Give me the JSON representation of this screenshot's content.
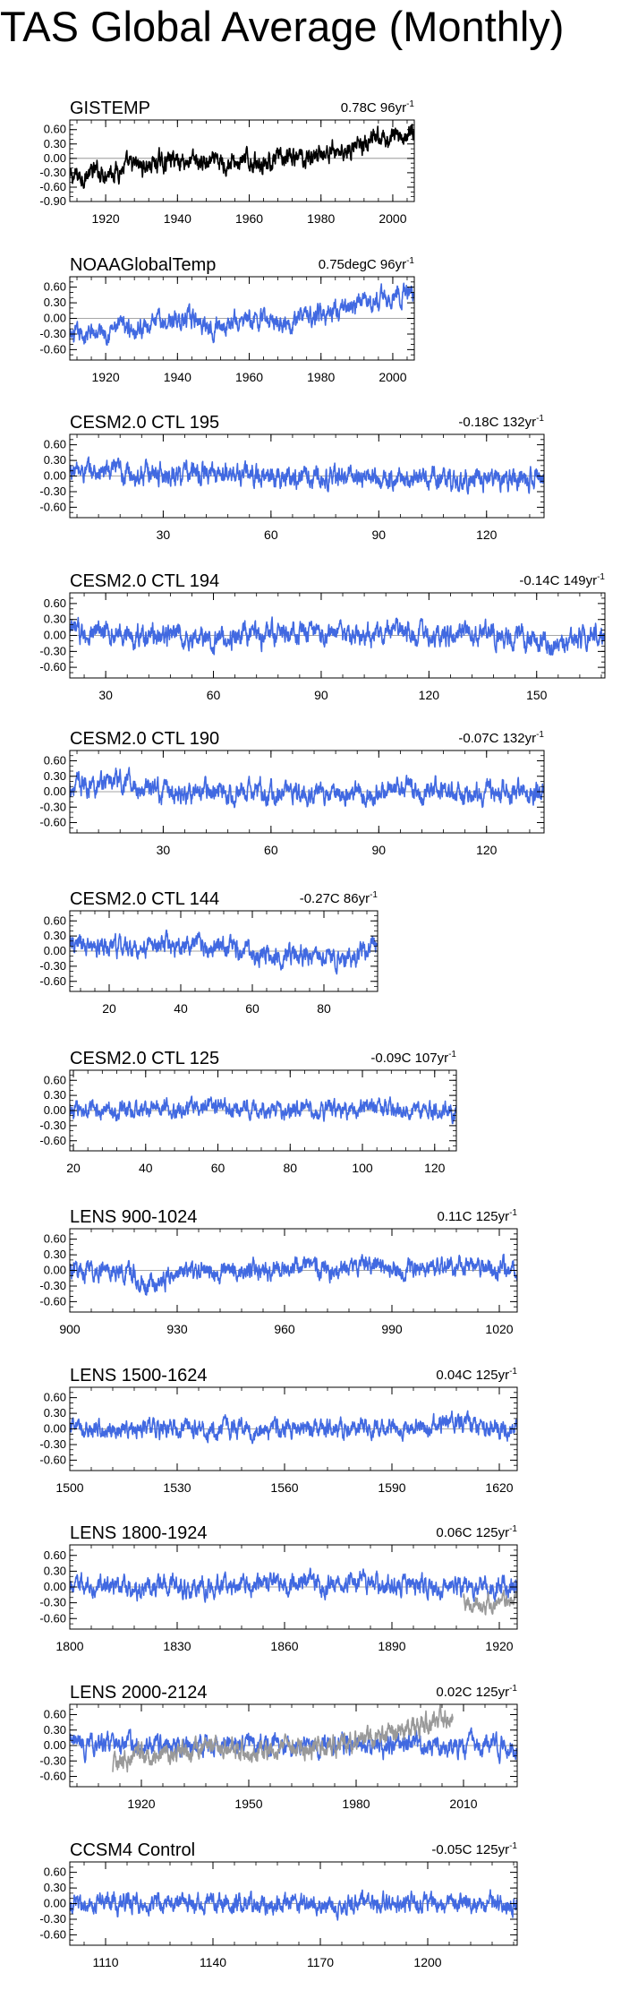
{
  "page": {
    "title": "TAS Global Average (Monthly)"
  },
  "chart_data": [
    {
      "type": "line",
      "title": "GISTEMP",
      "trend_label": "0.78C 96yr",
      "trend_unit_sup": "-1",
      "x_range": [
        1910,
        2006
      ],
      "x_ticks": [
        1920,
        1940,
        1960,
        1980,
        2000
      ],
      "ylim": [
        -0.9,
        0.8
      ],
      "y_ticks": [
        0.6,
        0.3,
        0.0,
        -0.3,
        -0.6,
        -0.9
      ],
      "y_tick_labels": [
        "0.60",
        "0.30",
        "0.00",
        "-0.30",
        "-0.60",
        "-0.90"
      ],
      "zero_line": true,
      "series": [
        {
          "color": "#000000",
          "anchors": [
            [
              1910,
              -0.42
            ],
            [
              1920,
              -0.25
            ],
            [
              1930,
              -0.17
            ],
            [
              1940,
              0.0
            ],
            [
              1950,
              -0.13
            ],
            [
              1960,
              -0.06
            ],
            [
              1970,
              -0.05
            ],
            [
              1980,
              0.1
            ],
            [
              1990,
              0.25
            ],
            [
              2000,
              0.42
            ],
            [
              2006,
              0.56
            ]
          ],
          "noise": 0.13
        }
      ]
    },
    {
      "type": "line",
      "title": "NOAAGlobalTemp",
      "trend_label": "0.75degC 96yr",
      "trend_unit_sup": "-1",
      "x_range": [
        1910,
        2006
      ],
      "x_ticks": [
        1920,
        1940,
        1960,
        1980,
        2000
      ],
      "ylim": [
        -0.8,
        0.8
      ],
      "y_ticks": [
        0.6,
        0.3,
        0.0,
        -0.3,
        -0.6
      ],
      "y_tick_labels": [
        "0.60",
        "0.30",
        "0.00",
        "-0.30",
        "-0.60"
      ],
      "zero_line": true,
      "series": [
        {
          "color": "#4169e1",
          "anchors": [
            [
              1910,
              -0.4
            ],
            [
              1920,
              -0.22
            ],
            [
              1930,
              -0.15
            ],
            [
              1940,
              0.0
            ],
            [
              1950,
              -0.12
            ],
            [
              1960,
              -0.05
            ],
            [
              1970,
              -0.04
            ],
            [
              1980,
              0.1
            ],
            [
              1990,
              0.25
            ],
            [
              2000,
              0.42
            ],
            [
              2006,
              0.55
            ]
          ],
          "noise": 0.12
        }
      ]
    },
    {
      "type": "line",
      "title": "CESM2.0 CTL 195",
      "trend_label": "-0.18C 132yr",
      "trend_unit_sup": "-1",
      "x_range": [
        4,
        136
      ],
      "x_ticks": [
        30,
        60,
        90,
        120
      ],
      "ylim": [
        -0.8,
        0.8
      ],
      "y_ticks": [
        0.6,
        0.3,
        0.0,
        -0.3,
        -0.6
      ],
      "y_tick_labels": [
        "0.60",
        "0.30",
        "0.00",
        "-0.30",
        "-0.60"
      ],
      "zero_line": true,
      "series": [
        {
          "color": "#4169e1",
          "anchors": [
            [
              4,
              0.1
            ],
            [
              20,
              0.05
            ],
            [
              40,
              0.05
            ],
            [
              60,
              0.0
            ],
            [
              80,
              -0.02
            ],
            [
              100,
              -0.05
            ],
            [
              120,
              -0.1
            ],
            [
              136,
              0.0
            ]
          ],
          "noise": 0.13
        }
      ]
    },
    {
      "type": "line",
      "title": "CESM2.0 CTL 194",
      "trend_label": "-0.14C 149yr",
      "trend_unit_sup": "-1",
      "x_range": [
        20,
        169
      ],
      "x_ticks": [
        30,
        60,
        90,
        120,
        150
      ],
      "ylim": [
        -0.8,
        0.8
      ],
      "y_ticks": [
        0.6,
        0.3,
        0.0,
        -0.3,
        -0.6
      ],
      "y_tick_labels": [
        "0.60",
        "0.30",
        "0.00",
        "-0.30",
        "-0.60"
      ],
      "zero_line": true,
      "series": [
        {
          "color": "#4169e1",
          "anchors": [
            [
              20,
              0.05
            ],
            [
              40,
              0.02
            ],
            [
              60,
              -0.08
            ],
            [
              80,
              0.05
            ],
            [
              100,
              0.02
            ],
            [
              120,
              0.02
            ],
            [
              135,
              0.05
            ],
            [
              150,
              -0.12
            ],
            [
              169,
              0.0
            ]
          ],
          "noise": 0.13
        }
      ]
    },
    {
      "type": "line",
      "title": "CESM2.0 CTL 190",
      "trend_label": "-0.07C 132yr",
      "trend_unit_sup": "-1",
      "x_range": [
        4,
        136
      ],
      "x_ticks": [
        30,
        60,
        90,
        120
      ],
      "ylim": [
        -0.8,
        0.8
      ],
      "y_ticks": [
        0.6,
        0.3,
        0.0,
        -0.3,
        -0.6
      ],
      "y_tick_labels": [
        "0.60",
        "0.30",
        "0.00",
        "-0.30",
        "-0.60"
      ],
      "zero_line": true,
      "series": [
        {
          "color": "#4169e1",
          "anchors": [
            [
              4,
              0.1
            ],
            [
              15,
              0.22
            ],
            [
              30,
              0.0
            ],
            [
              50,
              0.02
            ],
            [
              70,
              -0.05
            ],
            [
              90,
              0.0
            ],
            [
              110,
              0.03
            ],
            [
              125,
              0.02
            ],
            [
              136,
              -0.05
            ]
          ],
          "noise": 0.13
        }
      ]
    },
    {
      "type": "line",
      "title": "CESM2.0 CTL 144",
      "trend_label": "-0.27C 86yr",
      "trend_unit_sup": "-1",
      "x_range": [
        9,
        95
      ],
      "x_ticks": [
        20,
        40,
        60,
        80
      ],
      "ylim": [
        -0.8,
        0.8
      ],
      "y_ticks": [
        0.6,
        0.3,
        0.0,
        -0.3,
        -0.6
      ],
      "y_tick_labels": [
        "0.60",
        "0.30",
        "0.00",
        "-0.30",
        "-0.60"
      ],
      "zero_line": true,
      "series": [
        {
          "color": "#4169e1",
          "anchors": [
            [
              9,
              0.1
            ],
            [
              25,
              0.05
            ],
            [
              45,
              0.15
            ],
            [
              55,
              0.0
            ],
            [
              70,
              -0.05
            ],
            [
              85,
              -0.15
            ],
            [
              95,
              0.1
            ]
          ],
          "noise": 0.13
        }
      ]
    },
    {
      "type": "line",
      "title": "CESM2.0 CTL 125",
      "trend_label": "-0.09C 107yr",
      "trend_unit_sup": "-1",
      "x_range": [
        19,
        126
      ],
      "x_ticks": [
        20,
        40,
        60,
        80,
        100,
        120
      ],
      "ylim": [
        -0.8,
        0.8
      ],
      "y_ticks": [
        0.6,
        0.3,
        0.0,
        -0.3,
        -0.6
      ],
      "y_tick_labels": [
        "0.60",
        "0.30",
        "0.00",
        "-0.30",
        "-0.60"
      ],
      "zero_line": true,
      "series": [
        {
          "color": "#4169e1",
          "anchors": [
            [
              19,
              0.0
            ],
            [
              40,
              0.02
            ],
            [
              60,
              0.1
            ],
            [
              80,
              -0.02
            ],
            [
              100,
              0.05
            ],
            [
              126,
              -0.05
            ]
          ],
          "noise": 0.11
        }
      ]
    },
    {
      "type": "line",
      "title": "LENS 900-1024",
      "trend_label": "0.11C 125yr",
      "trend_unit_sup": "-1",
      "x_range": [
        900,
        1025
      ],
      "x_ticks": [
        900,
        930,
        960,
        990,
        1020
      ],
      "ylim": [
        -0.8,
        0.8
      ],
      "y_ticks": [
        0.6,
        0.3,
        0.0,
        -0.3,
        -0.6
      ],
      "y_tick_labels": [
        "0.60",
        "0.30",
        "0.00",
        "-0.30",
        "-0.60"
      ],
      "zero_line": true,
      "series": [
        {
          "color": "#4169e1",
          "anchors": [
            [
              900,
              0.0
            ],
            [
              915,
              0.0
            ],
            [
              922,
              -0.35
            ],
            [
              930,
              -0.02
            ],
            [
              960,
              0.05
            ],
            [
              980,
              0.05
            ],
            [
              1000,
              0.07
            ],
            [
              1025,
              0.02
            ]
          ],
          "noise": 0.12
        }
      ]
    },
    {
      "type": "line",
      "title": "LENS 1500-1624",
      "trend_label": "0.04C 125yr",
      "trend_unit_sup": "-1",
      "x_range": [
        1500,
        1625
      ],
      "x_ticks": [
        1500,
        1530,
        1560,
        1590,
        1620
      ],
      "ylim": [
        -0.8,
        0.8
      ],
      "y_ticks": [
        0.6,
        0.3,
        0.0,
        -0.3,
        -0.6
      ],
      "y_tick_labels": [
        "0.60",
        "0.30",
        "0.00",
        "-0.30",
        "-0.60"
      ],
      "zero_line": true,
      "series": [
        {
          "color": "#4169e1",
          "anchors": [
            [
              1500,
              0.0
            ],
            [
              1530,
              0.02
            ],
            [
              1560,
              -0.02
            ],
            [
              1590,
              0.02
            ],
            [
              1610,
              0.1
            ],
            [
              1625,
              0.0
            ]
          ],
          "noise": 0.11
        }
      ]
    },
    {
      "type": "line",
      "title": "LENS 1800-1924",
      "trend_label": "0.06C 125yr",
      "trend_unit_sup": "-1",
      "x_range": [
        1800,
        1925
      ],
      "x_ticks": [
        1800,
        1830,
        1860,
        1890,
        1920
      ],
      "ylim": [
        -0.8,
        0.8
      ],
      "y_ticks": [
        0.6,
        0.3,
        0.0,
        -0.3,
        -0.6
      ],
      "y_tick_labels": [
        "0.60",
        "0.30",
        "0.00",
        "-0.30",
        "-0.60"
      ],
      "zero_line": true,
      "series": [
        {
          "color": "#4169e1",
          "anchors": [
            [
              1800,
              0.0
            ],
            [
              1830,
              0.02
            ],
            [
              1860,
              0.05
            ],
            [
              1890,
              0.05
            ],
            [
              1910,
              0.0
            ],
            [
              1925,
              0.0
            ]
          ],
          "noise": 0.12
        },
        {
          "color": "#999999",
          "anchors": [
            [
              1910,
              -0.3
            ],
            [
              1916,
              -0.4
            ],
            [
              1920,
              -0.25
            ],
            [
              1925,
              -0.15
            ]
          ],
          "noise": 0.1
        }
      ]
    },
    {
      "type": "line",
      "title": "LENS 2000-2124",
      "trend_label": "0.02C 125yr",
      "trend_unit_sup": "-1",
      "x_range": [
        1900,
        2025
      ],
      "x_ticks": [
        1920,
        1950,
        1980,
        2010
      ],
      "ylim": [
        -0.8,
        0.8
      ],
      "y_ticks": [
        0.6,
        0.3,
        0.0,
        -0.3,
        -0.6
      ],
      "y_tick_labels": [
        "0.60",
        "0.30",
        "0.00",
        "-0.30",
        "-0.60"
      ],
      "zero_line": true,
      "series": [
        {
          "color": "#4169e1",
          "anchors": [
            [
              1900,
              0.02
            ],
            [
              1930,
              0.0
            ],
            [
              1960,
              0.0
            ],
            [
              1990,
              0.02
            ],
            [
              2025,
              -0.02
            ]
          ],
          "noise": 0.12
        },
        {
          "color": "#999999",
          "anchors": [
            [
              1912,
              -0.4
            ],
            [
              1920,
              -0.22
            ],
            [
              1930,
              -0.15
            ],
            [
              1940,
              0.0
            ],
            [
              1950,
              -0.12
            ],
            [
              1960,
              -0.05
            ],
            [
              1970,
              -0.04
            ],
            [
              1980,
              0.1
            ],
            [
              1990,
              0.25
            ],
            [
              2000,
              0.42
            ],
            [
              2007,
              0.55
            ]
          ],
          "noise": 0.12
        }
      ]
    },
    {
      "type": "line",
      "title": "CCSM4 Control",
      "trend_label": "-0.05C 125yr",
      "trend_unit_sup": "-1",
      "x_range": [
        1100,
        1225
      ],
      "x_ticks": [
        1110,
        1140,
        1170,
        1200
      ],
      "ylim": [
        -0.8,
        0.8
      ],
      "y_ticks": [
        0.6,
        0.3,
        0.0,
        -0.3,
        -0.6
      ],
      "y_tick_labels": [
        "0.60",
        "0.30",
        "0.00",
        "-0.30",
        "-0.60"
      ],
      "zero_line": true,
      "series": [
        {
          "color": "#4169e1",
          "anchors": [
            [
              1100,
              0.02
            ],
            [
              1130,
              0.0
            ],
            [
              1160,
              -0.02
            ],
            [
              1190,
              0.0
            ],
            [
              1225,
              -0.02
            ]
          ],
          "noise": 0.12
        }
      ]
    }
  ]
}
